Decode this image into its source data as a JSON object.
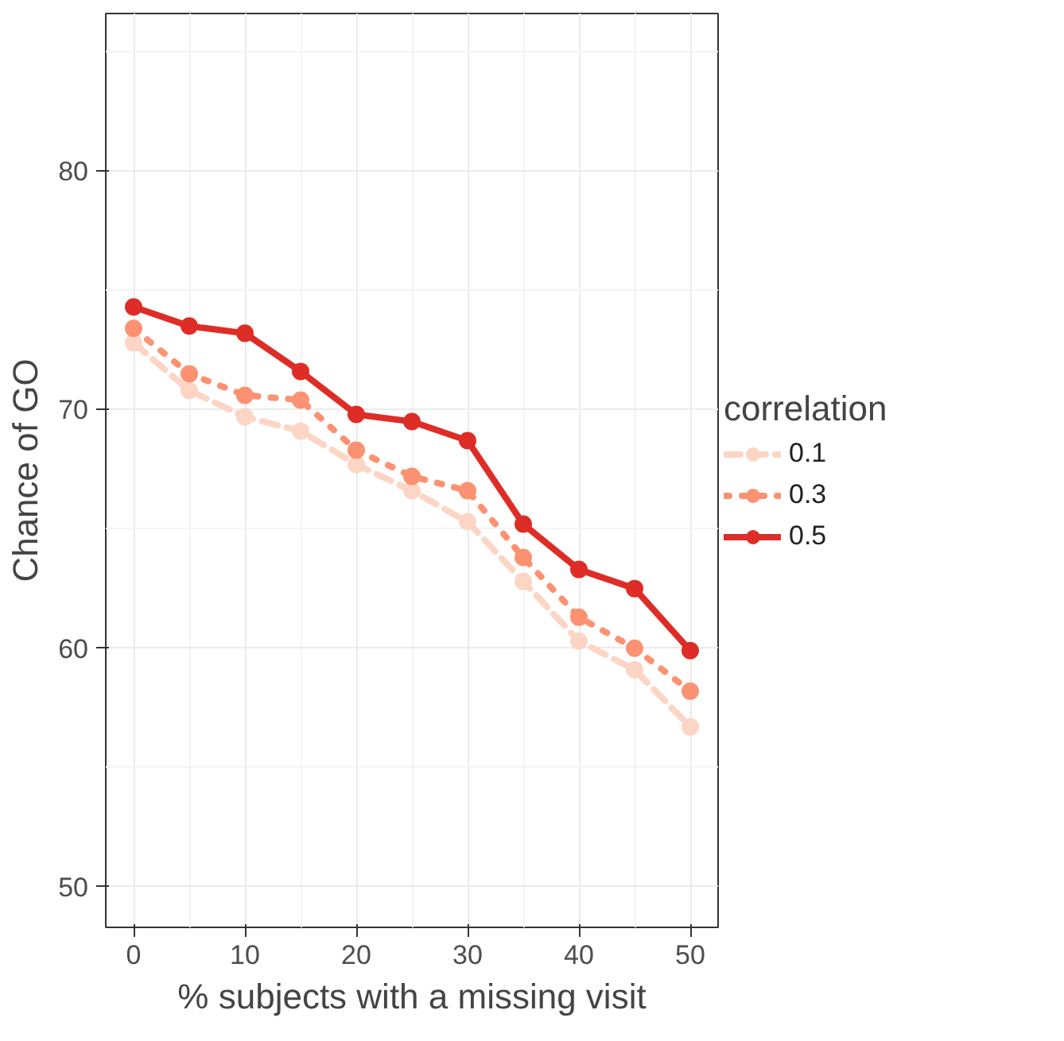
{
  "chart_data": {
    "type": "line",
    "xlabel": "% subjects with a missing visit",
    "ylabel": "Chance of GO",
    "legend_title": "correlation",
    "x": [
      0,
      5,
      10,
      15,
      20,
      25,
      30,
      35,
      40,
      45,
      50
    ],
    "series": [
      {
        "name": "0.1",
        "color": "#fdd5c5",
        "line_style": "dashed",
        "values": [
          72.8,
          70.8,
          69.7,
          69.1,
          67.7,
          66.6,
          65.3,
          62.8,
          60.3,
          59.1,
          56.7
        ]
      },
      {
        "name": "0.3",
        "color": "#fc9272",
        "line_style": "dotted",
        "values": [
          73.4,
          71.5,
          70.6,
          70.4,
          68.3,
          67.2,
          66.6,
          63.8,
          61.3,
          60.0,
          58.2
        ]
      },
      {
        "name": "0.5",
        "color": "#de2d26",
        "line_style": "solid",
        "values": [
          74.3,
          73.5,
          73.2,
          71.6,
          69.8,
          69.5,
          68.7,
          65.2,
          63.3,
          62.5,
          59.9
        ]
      }
    ],
    "xlim": [
      -2.5,
      52.5
    ],
    "ylim": [
      48.3,
      86.6
    ],
    "xticks": [
      0,
      10,
      20,
      30,
      40,
      50
    ],
    "yticks": [
      50,
      60,
      70,
      80
    ],
    "grid": true,
    "legend": "right",
    "marker": "circle"
  }
}
